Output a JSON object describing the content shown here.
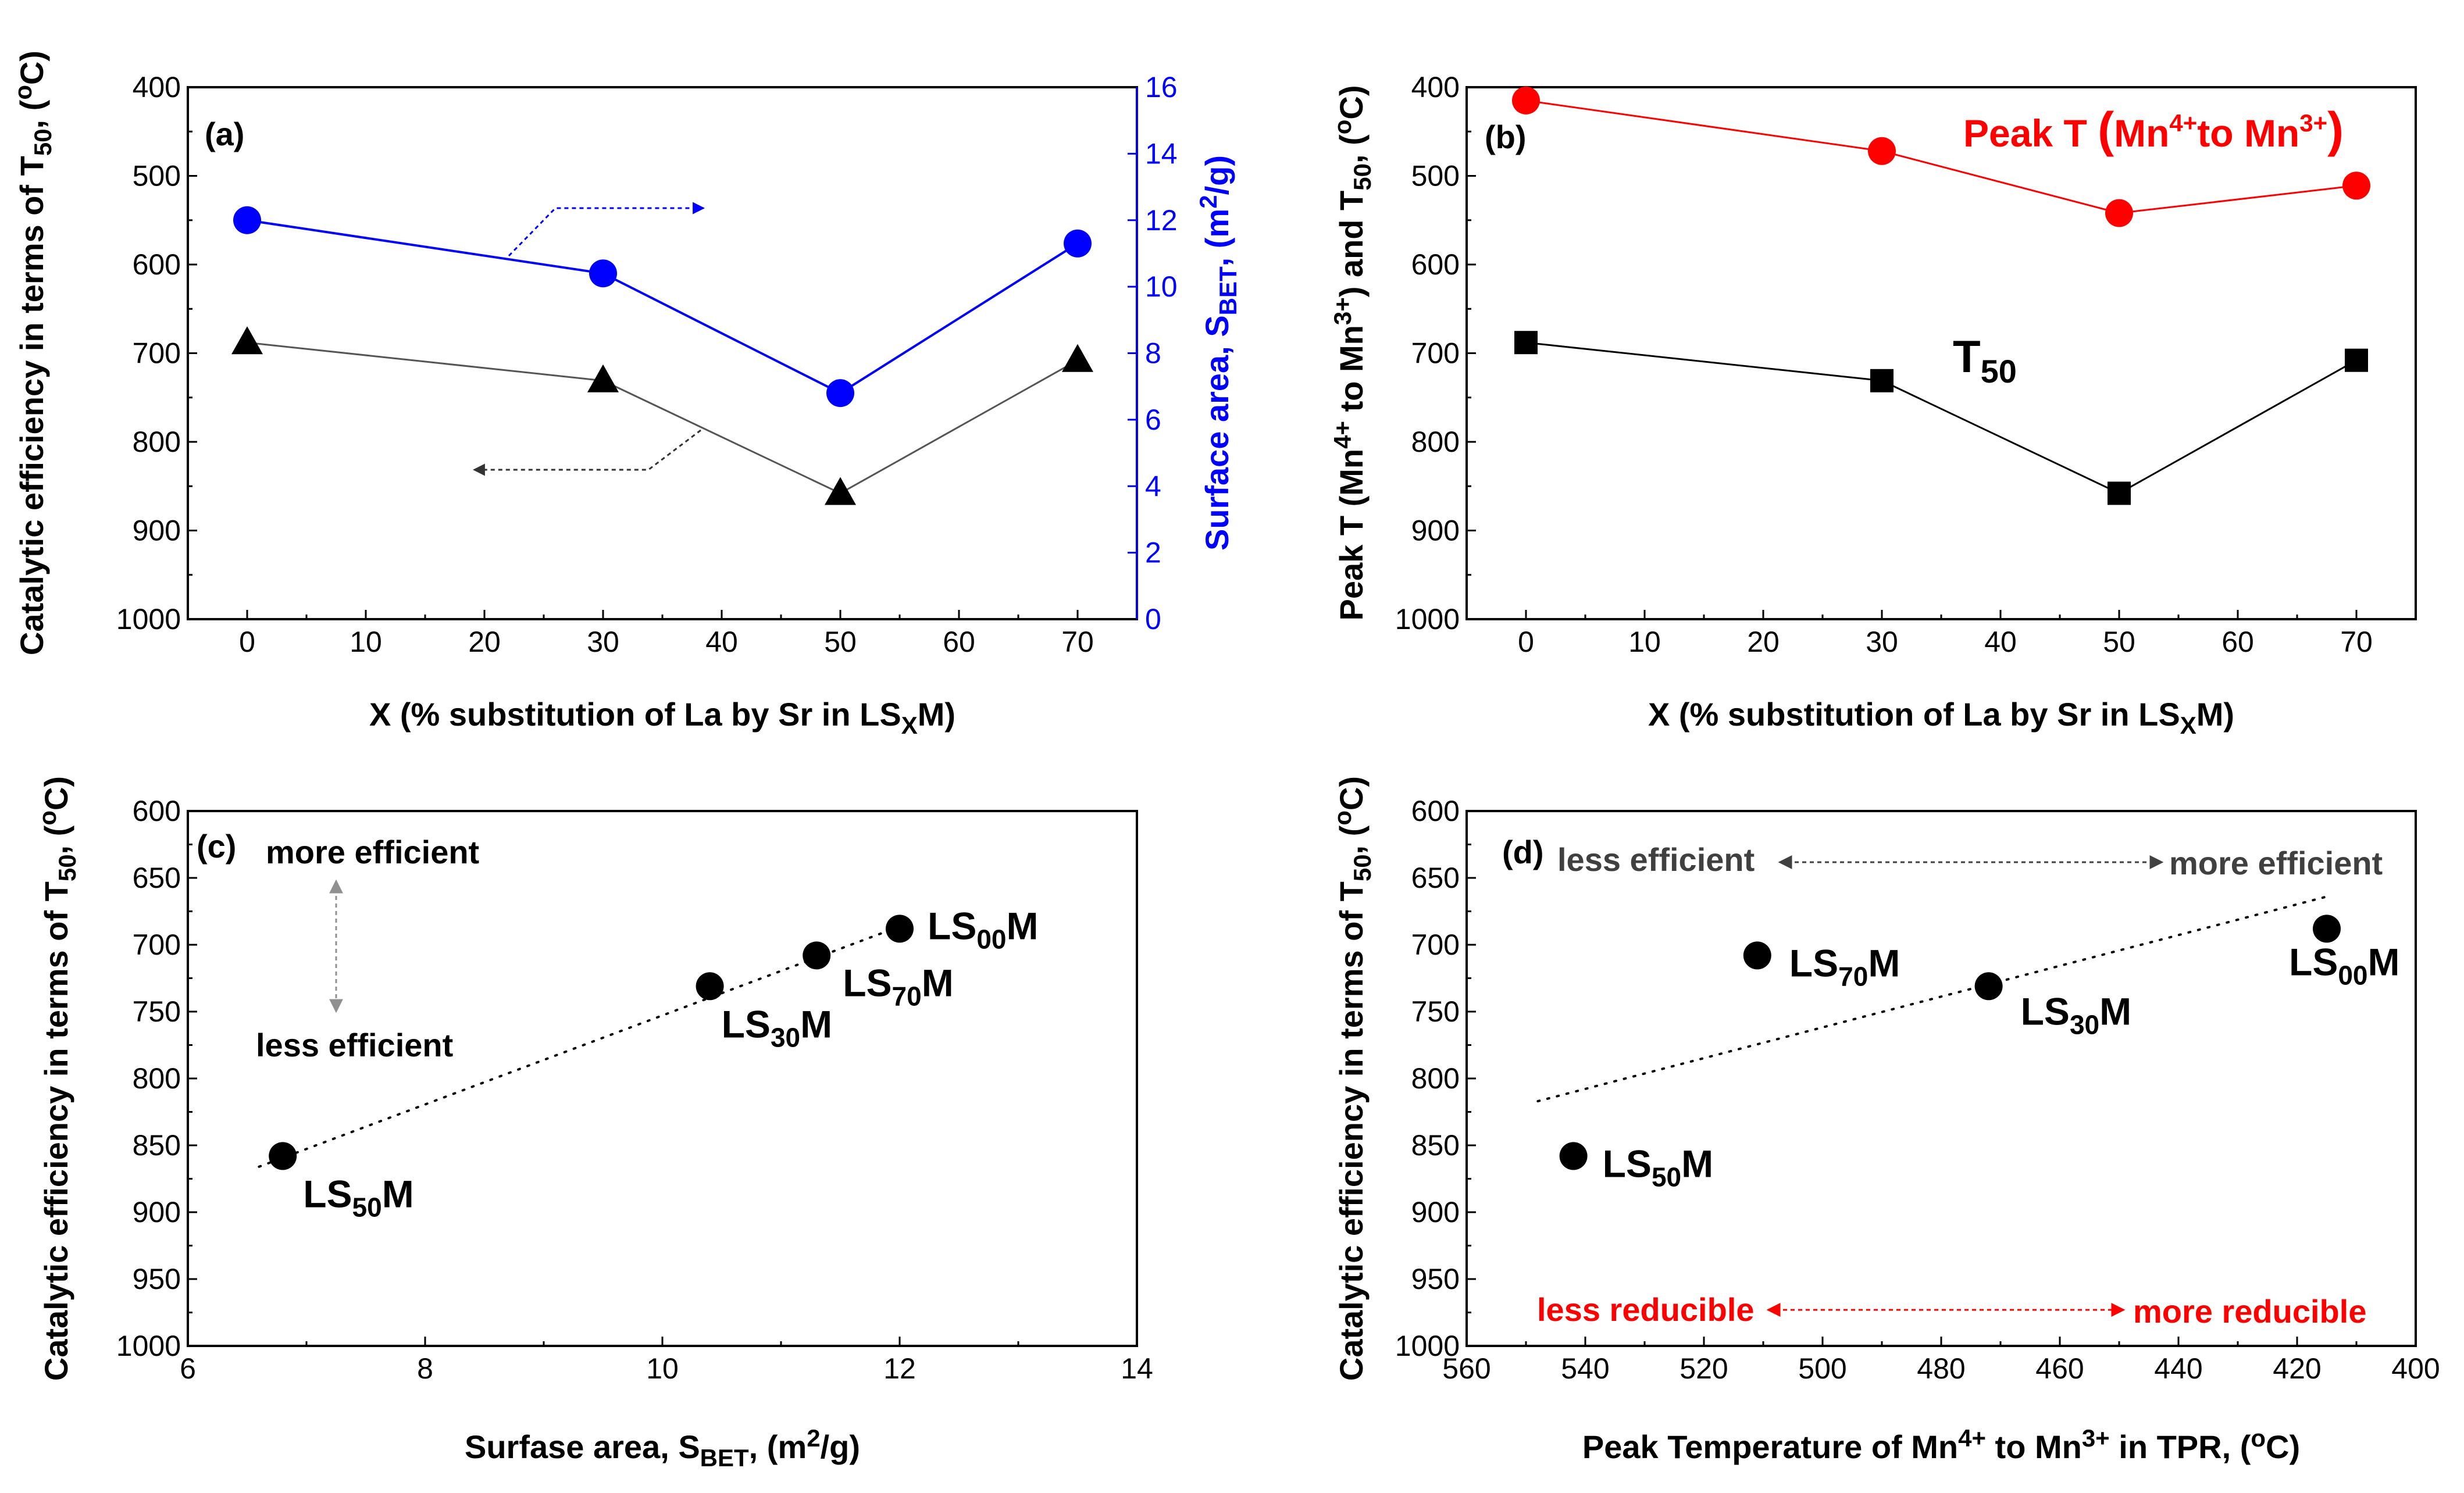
{
  "chart_data": [
    {
      "panel": "(a)",
      "type": "line",
      "xlabel": "X (% substitution of La by Sr in LS",
      "xlabel_sub": "X",
      "xlabel_end": "M)",
      "ylabel": "Catalytic efficiency in terms of T",
      "ylabel_sub": "50",
      "ylabel_end": ", (",
      "ylabel_sup": "o",
      "ylabel_end2": "C)",
      "y2label": "Surface area, S",
      "y2label_sub": "BET",
      "y2label_end": ", (m",
      "y2label_sup": "2",
      "y2label_end2": "/g)",
      "xlim": [
        -5,
        75
      ],
      "ylim": [
        400,
        1000
      ],
      "y_reversed": true,
      "y2lim": [
        0,
        16
      ],
      "x_ticks": [
        0,
        10,
        20,
        30,
        40,
        50,
        60,
        70
      ],
      "y_ticks": [
        400,
        500,
        600,
        700,
        800,
        900,
        1000
      ],
      "y2_ticks": [
        0,
        2,
        4,
        6,
        8,
        10,
        12,
        14,
        16
      ],
      "series": [
        {
          "name": "T50",
          "axis": "left",
          "marker": "triangle",
          "color": "#000000",
          "x": [
            0,
            30,
            50,
            70
          ],
          "y": [
            688,
            731,
            858,
            708
          ]
        },
        {
          "name": "S_BET",
          "axis": "right",
          "marker": "circle",
          "color": "#0000ff",
          "x": [
            0,
            30,
            50,
            70
          ],
          "y": [
            12.0,
            10.4,
            6.8,
            11.3
          ]
        }
      ]
    },
    {
      "panel": "(b)",
      "type": "line",
      "xlabel": "X (% substitution of La by Sr in LS",
      "xlabel_sub": "X",
      "xlabel_end": "M)",
      "ylabel": "Peak T (Mn",
      "ylabel_sup1": "4+",
      "ylabel_mid": " to Mn",
      "ylabel_sup2": "3+",
      "ylabel_mid2": ") and T",
      "ylabel_sub": "50",
      "ylabel_end": ", (",
      "ylabel_sup3": "o",
      "ylabel_end2": "C)",
      "xlim": [
        -5,
        75
      ],
      "ylim": [
        400,
        1000
      ],
      "y_reversed": true,
      "x_ticks": [
        0,
        10,
        20,
        30,
        40,
        50,
        60,
        70
      ],
      "y_ticks": [
        400,
        500,
        600,
        700,
        800,
        900,
        1000
      ],
      "series": [
        {
          "name": "Peak T (Mn4+ to Mn3+)",
          "marker": "circle",
          "color": "#ff0000",
          "x": [
            0,
            30,
            50,
            70
          ],
          "y": [
            415,
            472,
            542,
            511
          ]
        },
        {
          "name": "T50",
          "marker": "square",
          "color": "#000000",
          "x": [
            0,
            30,
            50,
            70
          ],
          "y": [
            688,
            731,
            858,
            708
          ]
        }
      ],
      "legend": {
        "peak_pre": "Peak T ",
        "peak_paren_open": "(",
        "peak_mn1": "Mn",
        "peak_sup1": "4+",
        "peak_to": "to Mn",
        "peak_sup2": "3+",
        "peak_paren_close": ")",
        "t50": "T",
        "t50_sub": "50"
      }
    },
    {
      "panel": "(c)",
      "type": "scatter",
      "xlabel": "Surfase area, S",
      "xlabel_sub": "BET",
      "xlabel_end": ", (m",
      "xlabel_sup": "2",
      "xlabel_end2": "/g)",
      "ylabel": "Catalytic efficiency in terms of T",
      "ylabel_sub": "50",
      "ylabel_end": ", (",
      "ylabel_sup": "o",
      "ylabel_end2": "C)",
      "xlim": [
        6,
        14
      ],
      "ylim": [
        600,
        1000
      ],
      "y_reversed": true,
      "x_ticks": [
        6,
        8,
        10,
        12,
        14
      ],
      "y_ticks": [
        600,
        650,
        700,
        750,
        800,
        850,
        900,
        950,
        1000
      ],
      "points": [
        {
          "label": "LS",
          "sub": "00",
          "end": "M",
          "x": 12.0,
          "y": 688
        },
        {
          "label": "LS",
          "sub": "30",
          "end": "M",
          "x": 10.4,
          "y": 731
        },
        {
          "label": "LS",
          "sub": "50",
          "end": "M",
          "x": 6.8,
          "y": 858
        },
        {
          "label": "LS",
          "sub": "70",
          "end": "M",
          "x": 11.3,
          "y": 708
        }
      ],
      "trend": {
        "x": [
          6.6,
          12.1
        ],
        "y": [
          866,
          683
        ]
      },
      "annotations": {
        "top": "more efficient",
        "bottom": "less efficient"
      }
    },
    {
      "panel": "(d)",
      "type": "scatter",
      "xlabel": "Peak Temperature of Mn",
      "xlabel_sup1": "4+",
      "xlabel_mid": " to Mn",
      "xlabel_sup2": "3+",
      "xlabel_end": " in TPR, (",
      "xlabel_sup3": "o",
      "xlabel_end2": "C)",
      "ylabel": "Catalytic efficiency in terms of T",
      "ylabel_sub": "50",
      "ylabel_end": ", (",
      "ylabel_sup": "o",
      "ylabel_end2": "C)",
      "xlim": [
        560,
        400
      ],
      "x_reversed": true,
      "ylim": [
        600,
        1000
      ],
      "y_reversed": true,
      "x_ticks": [
        560,
        540,
        520,
        500,
        480,
        460,
        440,
        420,
        400
      ],
      "y_ticks": [
        600,
        650,
        700,
        750,
        800,
        850,
        900,
        950,
        1000
      ],
      "points": [
        {
          "label": "LS",
          "sub": "00",
          "end": "M",
          "x": 415,
          "y": 688
        },
        {
          "label": "LS",
          "sub": "30",
          "end": "M",
          "x": 472,
          "y": 731
        },
        {
          "label": "LS",
          "sub": "50",
          "end": "M",
          "x": 542,
          "y": 858
        },
        {
          "label": "LS",
          "sub": "70",
          "end": "M",
          "x": 511,
          "y": 708
        }
      ],
      "trend": {
        "x": [
          548,
          415
        ],
        "y": [
          817,
          664
        ]
      },
      "annotations": {
        "left_top": "less efficient",
        "right_top": "more efficient",
        "left_bottom": "less reducible",
        "right_bottom": "more reducible",
        "top_color": "#404040",
        "bottom_color": "#ff0000"
      }
    }
  ]
}
